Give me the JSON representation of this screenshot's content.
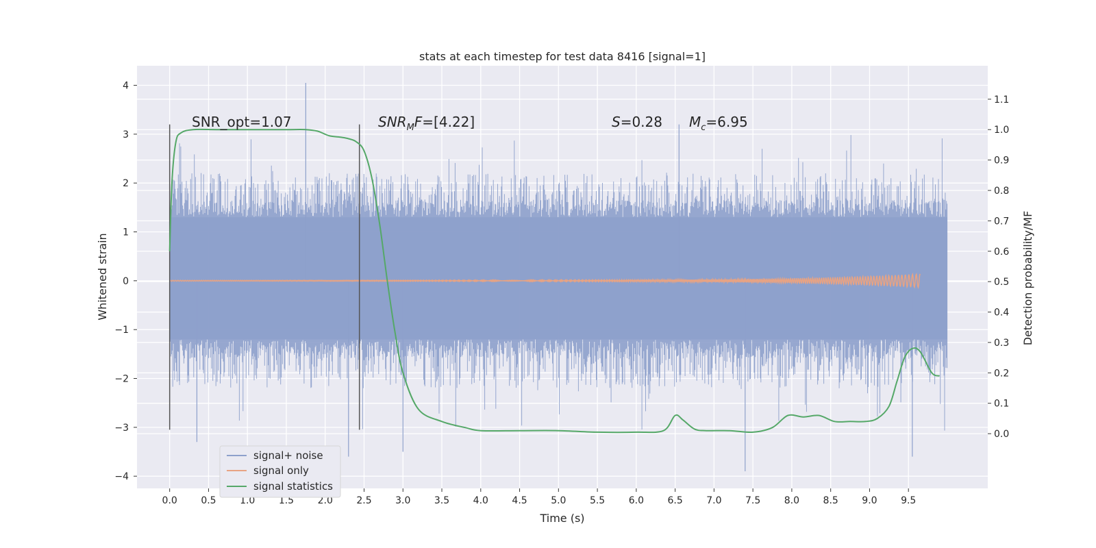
{
  "chart_data": {
    "type": "line",
    "title": "stats at each timestep for test data 8416 [signal=1]",
    "xlabel": "Time (s)",
    "ylabel": "Whitened strain",
    "y2label": "Detection probability/MF",
    "xlim": [
      -0.42,
      10.52
    ],
    "ylim": [
      -4.25,
      4.4
    ],
    "y2lim": [
      -0.18,
      1.21
    ],
    "x_ticks": [
      "0.0",
      "0.5",
      "1.0",
      "1.5",
      "2.0",
      "2.5",
      "3.0",
      "3.5",
      "4.0",
      "4.5",
      "5.0",
      "5.5",
      "6.0",
      "6.5",
      "7.0",
      "7.5",
      "8.0",
      "8.5",
      "9.0",
      "9.5"
    ],
    "y_ticks": [
      "4",
      "3",
      "2",
      "1",
      "0",
      "−1",
      "−2",
      "−3",
      "−4"
    ],
    "y2_ticks": [
      "1.1",
      "1.0",
      "0.9",
      "0.8",
      "0.7",
      "0.6",
      "0.5",
      "0.4",
      "0.3",
      "0.2",
      "0.1",
      "0.0"
    ],
    "grid": true,
    "legend_position": "lower-left",
    "colors": {
      "background": "#eaeaf2",
      "grid": "#ffffff",
      "signal_noise": "#8da0cb",
      "signal_only": "#e8a383",
      "statistics": "#55a868",
      "marker": "#555555"
    },
    "annotations": {
      "snr_opt": "SNR_opt=1.07",
      "snr_mf_sym": "SNR",
      "snr_mf_sub": "M",
      "snr_mf_sym2": "F",
      "snr_mf_val": "=[4.22]",
      "s_sym": "S",
      "s_val": "=0.28",
      "mc_sym": "M",
      "mc_sub": "c",
      "mc_val": "=6.95"
    },
    "vertical_markers": [
      0.0,
      2.44
    ],
    "series": [
      {
        "name": "signal+ noise",
        "kind": "noise",
        "x_range": [
          0.0,
          10.0
        ],
        "band": [
          -1.2,
          1.3
        ],
        "typical_peak": [
          -2.2,
          2.2
        ],
        "extremes": [
          -3.9,
          4.05
        ]
      },
      {
        "name": "signal only",
        "kind": "chirp",
        "x_range": [
          0.0,
          9.65
        ],
        "amplitude_end": 0.13
      },
      {
        "name": "signal statistics",
        "kind": "curve",
        "axis": "right",
        "x": [
          0.0,
          0.03,
          0.08,
          0.15,
          0.3,
          0.6,
          1.0,
          1.5,
          1.75,
          1.9,
          2.05,
          2.2,
          2.3,
          2.4,
          2.5,
          2.6,
          2.7,
          2.8,
          2.9,
          3.0,
          3.2,
          3.5,
          3.8,
          4.0,
          4.5,
          5.0,
          5.5,
          6.0,
          6.35,
          6.5,
          6.6,
          6.75,
          6.9,
          7.2,
          7.5,
          7.75,
          7.95,
          8.15,
          8.35,
          8.55,
          8.75,
          8.95,
          9.1,
          9.25,
          9.35,
          9.45,
          9.55,
          9.65,
          9.8,
          9.9
        ],
        "y": [
          0.6,
          0.83,
          0.96,
          0.99,
          1.0,
          1.0,
          1.0,
          1.0,
          1.0,
          0.995,
          0.98,
          0.975,
          0.97,
          0.96,
          0.93,
          0.84,
          0.69,
          0.5,
          0.33,
          0.2,
          0.08,
          0.04,
          0.02,
          0.01,
          0.01,
          0.01,
          0.005,
          0.005,
          0.01,
          0.06,
          0.045,
          0.015,
          0.01,
          0.01,
          0.005,
          0.02,
          0.06,
          0.055,
          0.06,
          0.04,
          0.04,
          0.04,
          0.05,
          0.09,
          0.17,
          0.25,
          0.28,
          0.27,
          0.2,
          0.19
        ]
      }
    ]
  }
}
